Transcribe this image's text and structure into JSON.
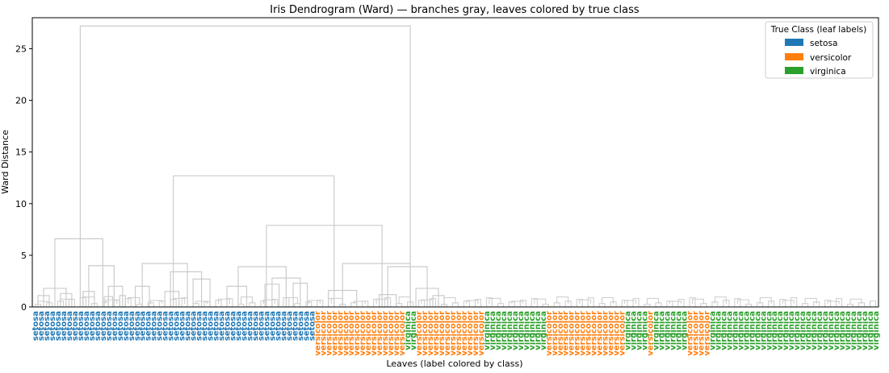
{
  "chart_data": {
    "type": "dendrogram",
    "title": "Iris Dendrogram (Ward) — branches gray, leaves colored by true class",
    "xlabel": "Leaves (label colored by class)",
    "ylabel": "Ward Distance",
    "ylim": [
      0,
      28
    ],
    "yticks": [
      0,
      5,
      10,
      15,
      20,
      25
    ],
    "grid": false,
    "branch_color": "#cccccc",
    "legend": {
      "title": "True Class (leaf labels)",
      "placement": "top-right",
      "entries": [
        {
          "name": "setosa",
          "color": "#1f77b4"
        },
        {
          "name": "versicolor",
          "color": "#ff7f0e"
        },
        {
          "name": "virginica",
          "color": "#2ca02c"
        }
      ]
    },
    "leaves": [
      "setosa",
      "setosa",
      "setosa",
      "setosa",
      "setosa",
      "setosa",
      "setosa",
      "setosa",
      "setosa",
      "setosa",
      "setosa",
      "setosa",
      "setosa",
      "setosa",
      "setosa",
      "setosa",
      "setosa",
      "setosa",
      "setosa",
      "setosa",
      "setosa",
      "setosa",
      "setosa",
      "setosa",
      "setosa",
      "setosa",
      "setosa",
      "setosa",
      "setosa",
      "setosa",
      "setosa",
      "setosa",
      "setosa",
      "setosa",
      "setosa",
      "setosa",
      "setosa",
      "setosa",
      "setosa",
      "setosa",
      "setosa",
      "setosa",
      "setosa",
      "setosa",
      "setosa",
      "setosa",
      "setosa",
      "setosa",
      "setosa",
      "setosa",
      "versicolor",
      "versicolor",
      "versicolor",
      "versicolor",
      "versicolor",
      "versicolor",
      "versicolor",
      "versicolor",
      "versicolor",
      "versicolor",
      "versicolor",
      "versicolor",
      "versicolor",
      "versicolor",
      "versicolor",
      "versicolor",
      "virginica",
      "virginica",
      "versicolor",
      "versicolor",
      "versicolor",
      "versicolor",
      "versicolor",
      "versicolor",
      "versicolor",
      "versicolor",
      "versicolor",
      "versicolor",
      "versicolor",
      "versicolor",
      "virginica",
      "virginica",
      "virginica",
      "virginica",
      "virginica",
      "virginica",
      "virginica",
      "virginica",
      "virginica",
      "virginica",
      "virginica",
      "versicolor",
      "versicolor",
      "versicolor",
      "versicolor",
      "versicolor",
      "versicolor",
      "versicolor",
      "versicolor",
      "versicolor",
      "versicolor",
      "versicolor",
      "versicolor",
      "versicolor",
      "versicolor",
      "virginica",
      "virginica",
      "virginica",
      "virginica",
      "versicolor",
      "virginica",
      "virginica",
      "virginica",
      "virginica",
      "virginica",
      "virginica",
      "versicolor",
      "versicolor",
      "versicolor",
      "versicolor",
      "virginica",
      "virginica",
      "virginica",
      "virginica",
      "virginica",
      "virginica",
      "virginica",
      "virginica",
      "virginica",
      "virginica",
      "virginica",
      "virginica",
      "virginica",
      "virginica",
      "virginica",
      "virginica",
      "virginica",
      "virginica",
      "virginica",
      "virginica",
      "virginica",
      "virginica",
      "virginica",
      "virginica",
      "virginica",
      "virginica",
      "virginica",
      "virginica",
      "virginica",
      "virginica"
    ],
    "links": [
      {
        "left": [
          0,
          17
        ],
        "right": [
          60,
          74
        ],
        "height": 27.2
      },
      {
        "left": [
          0,
          8
        ],
        "right": [
          8,
          17
        ],
        "height": 6.6
      },
      {
        "left": [
          0,
          4
        ],
        "right": [
          4,
          8
        ],
        "height": 1.8
      },
      {
        "left": [
          0,
          2
        ],
        "right": [
          2,
          4
        ],
        "height": 1.1
      },
      {
        "left": [
          4,
          6
        ],
        "right": [
          6,
          8
        ],
        "height": 1.3
      },
      {
        "left": [
          8,
          12
        ],
        "right": [
          12,
          17
        ],
        "height": 4.0
      },
      {
        "left": [
          8,
          10
        ],
        "right": [
          10,
          12
        ],
        "height": 1.5
      },
      {
        "left": [
          12,
          15
        ],
        "right": [
          15,
          17
        ],
        "height": 2.0
      },
      {
        "left": [
          12,
          13.5
        ],
        "right": [
          13.5,
          15
        ],
        "height": 1.0
      },
      {
        "left": [
          15,
          16
        ],
        "right": [
          16,
          17
        ],
        "height": 1.1
      },
      {
        "left": [
          17,
          33
        ],
        "right": [
          33,
          74
        ],
        "height": 12.7
      },
      {
        "left": [
          17,
          22
        ],
        "right": [
          22,
          33
        ],
        "height": 4.2
      },
      {
        "left": [
          17,
          19.5
        ],
        "right": [
          19.5,
          22
        ],
        "height": 2.0
      },
      {
        "left": [
          22,
          27
        ],
        "right": [
          27,
          33
        ],
        "height": 3.4
      },
      {
        "left": [
          22,
          25
        ],
        "right": [
          25,
          27
        ],
        "height": 1.5
      },
      {
        "left": [
          27,
          30
        ],
        "right": [
          30,
          33
        ],
        "height": 2.7
      },
      {
        "left": [
          33,
          50
        ],
        "right": [
          50,
          74
        ],
        "height": 7.9
      },
      {
        "left": [
          33,
          40
        ],
        "right": [
          40,
          50
        ],
        "height": 3.9
      },
      {
        "left": [
          33,
          36
        ],
        "right": [
          36,
          40
        ],
        "height": 2.0
      },
      {
        "left": [
          40,
          45
        ],
        "right": [
          45,
          50
        ],
        "height": 2.8
      },
      {
        "left": [
          40,
          42.5
        ],
        "right": [
          42.5,
          45
        ],
        "height": 2.2
      },
      {
        "left": [
          45,
          47.5
        ],
        "right": [
          47.5,
          50
        ],
        "height": 2.3
      },
      {
        "left": [
          50,
          60
        ],
        "right": [
          60,
          74
        ],
        "height": 4.2
      },
      {
        "left": [
          50,
          55
        ],
        "right": [
          55,
          60
        ],
        "height": 1.6
      },
      {
        "left": [
          60,
          66
        ],
        "right": [
          66,
          74
        ],
        "height": 3.9
      },
      {
        "left": [
          60,
          63
        ],
        "right": [
          63,
          66
        ],
        "height": 1.2
      },
      {
        "left": [
          66,
          70
        ],
        "right": [
          70,
          74
        ],
        "height": 1.8
      },
      {
        "left": [
          70,
          72
        ],
        "right": [
          72,
          74
        ],
        "height": 1.1
      }
    ]
  }
}
